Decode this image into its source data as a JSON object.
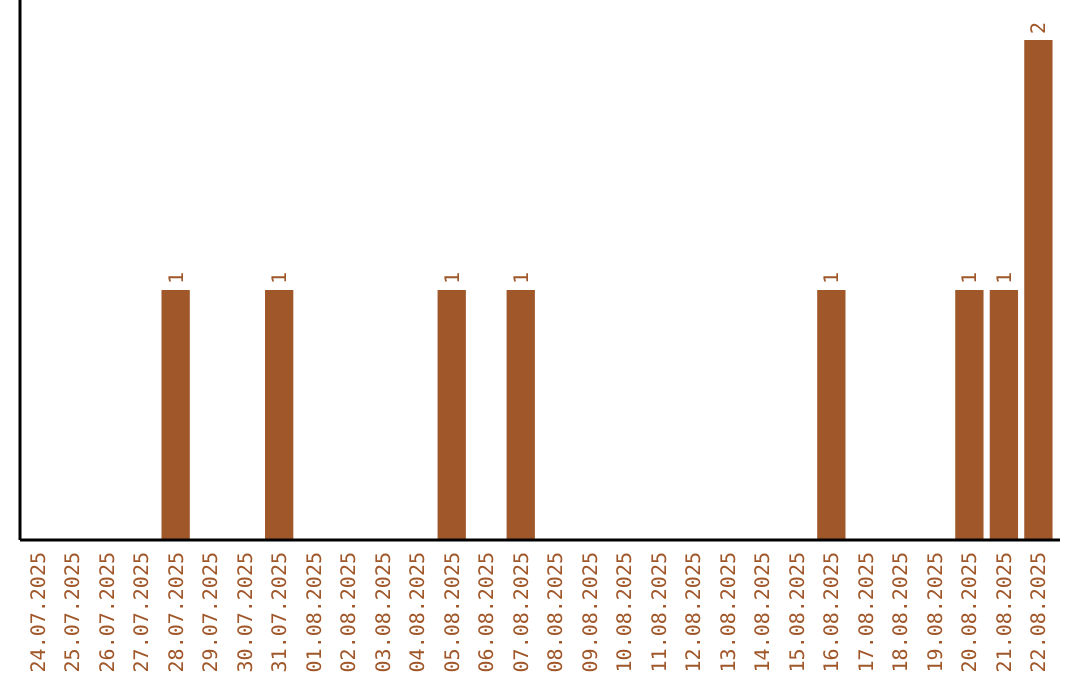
{
  "chart_data": {
    "type": "bar",
    "categories": [
      "24.07.2025",
      "25.07.2025",
      "26.07.2025",
      "27.07.2025",
      "28.07.2025",
      "29.07.2025",
      "30.07.2025",
      "31.07.2025",
      "01.08.2025",
      "02.08.2025",
      "03.08.2025",
      "04.08.2025",
      "05.08.2025",
      "06.08.2025",
      "07.08.2025",
      "08.08.2025",
      "09.08.2025",
      "10.08.2025",
      "11.08.2025",
      "12.08.2025",
      "13.08.2025",
      "14.08.2025",
      "15.08.2025",
      "16.08.2025",
      "17.08.2025",
      "18.08.2025",
      "19.08.2025",
      "20.08.2025",
      "21.08.2025",
      "22.08.2025"
    ],
    "values": [
      0,
      0,
      0,
      0,
      1,
      0,
      0,
      1,
      0,
      0,
      0,
      0,
      1,
      0,
      1,
      0,
      0,
      0,
      0,
      0,
      0,
      0,
      0,
      1,
      0,
      0,
      0,
      1,
      1,
      2
    ],
    "value_labels": [
      null,
      null,
      null,
      null,
      "1",
      null,
      null,
      "1",
      null,
      null,
      null,
      null,
      "1",
      null,
      "1",
      null,
      null,
      null,
      null,
      null,
      null,
      null,
      null,
      "1",
      null,
      null,
      null,
      "1",
      "1",
      "2"
    ],
    "color": "#a0572a",
    "tick_labels": "x"
  }
}
